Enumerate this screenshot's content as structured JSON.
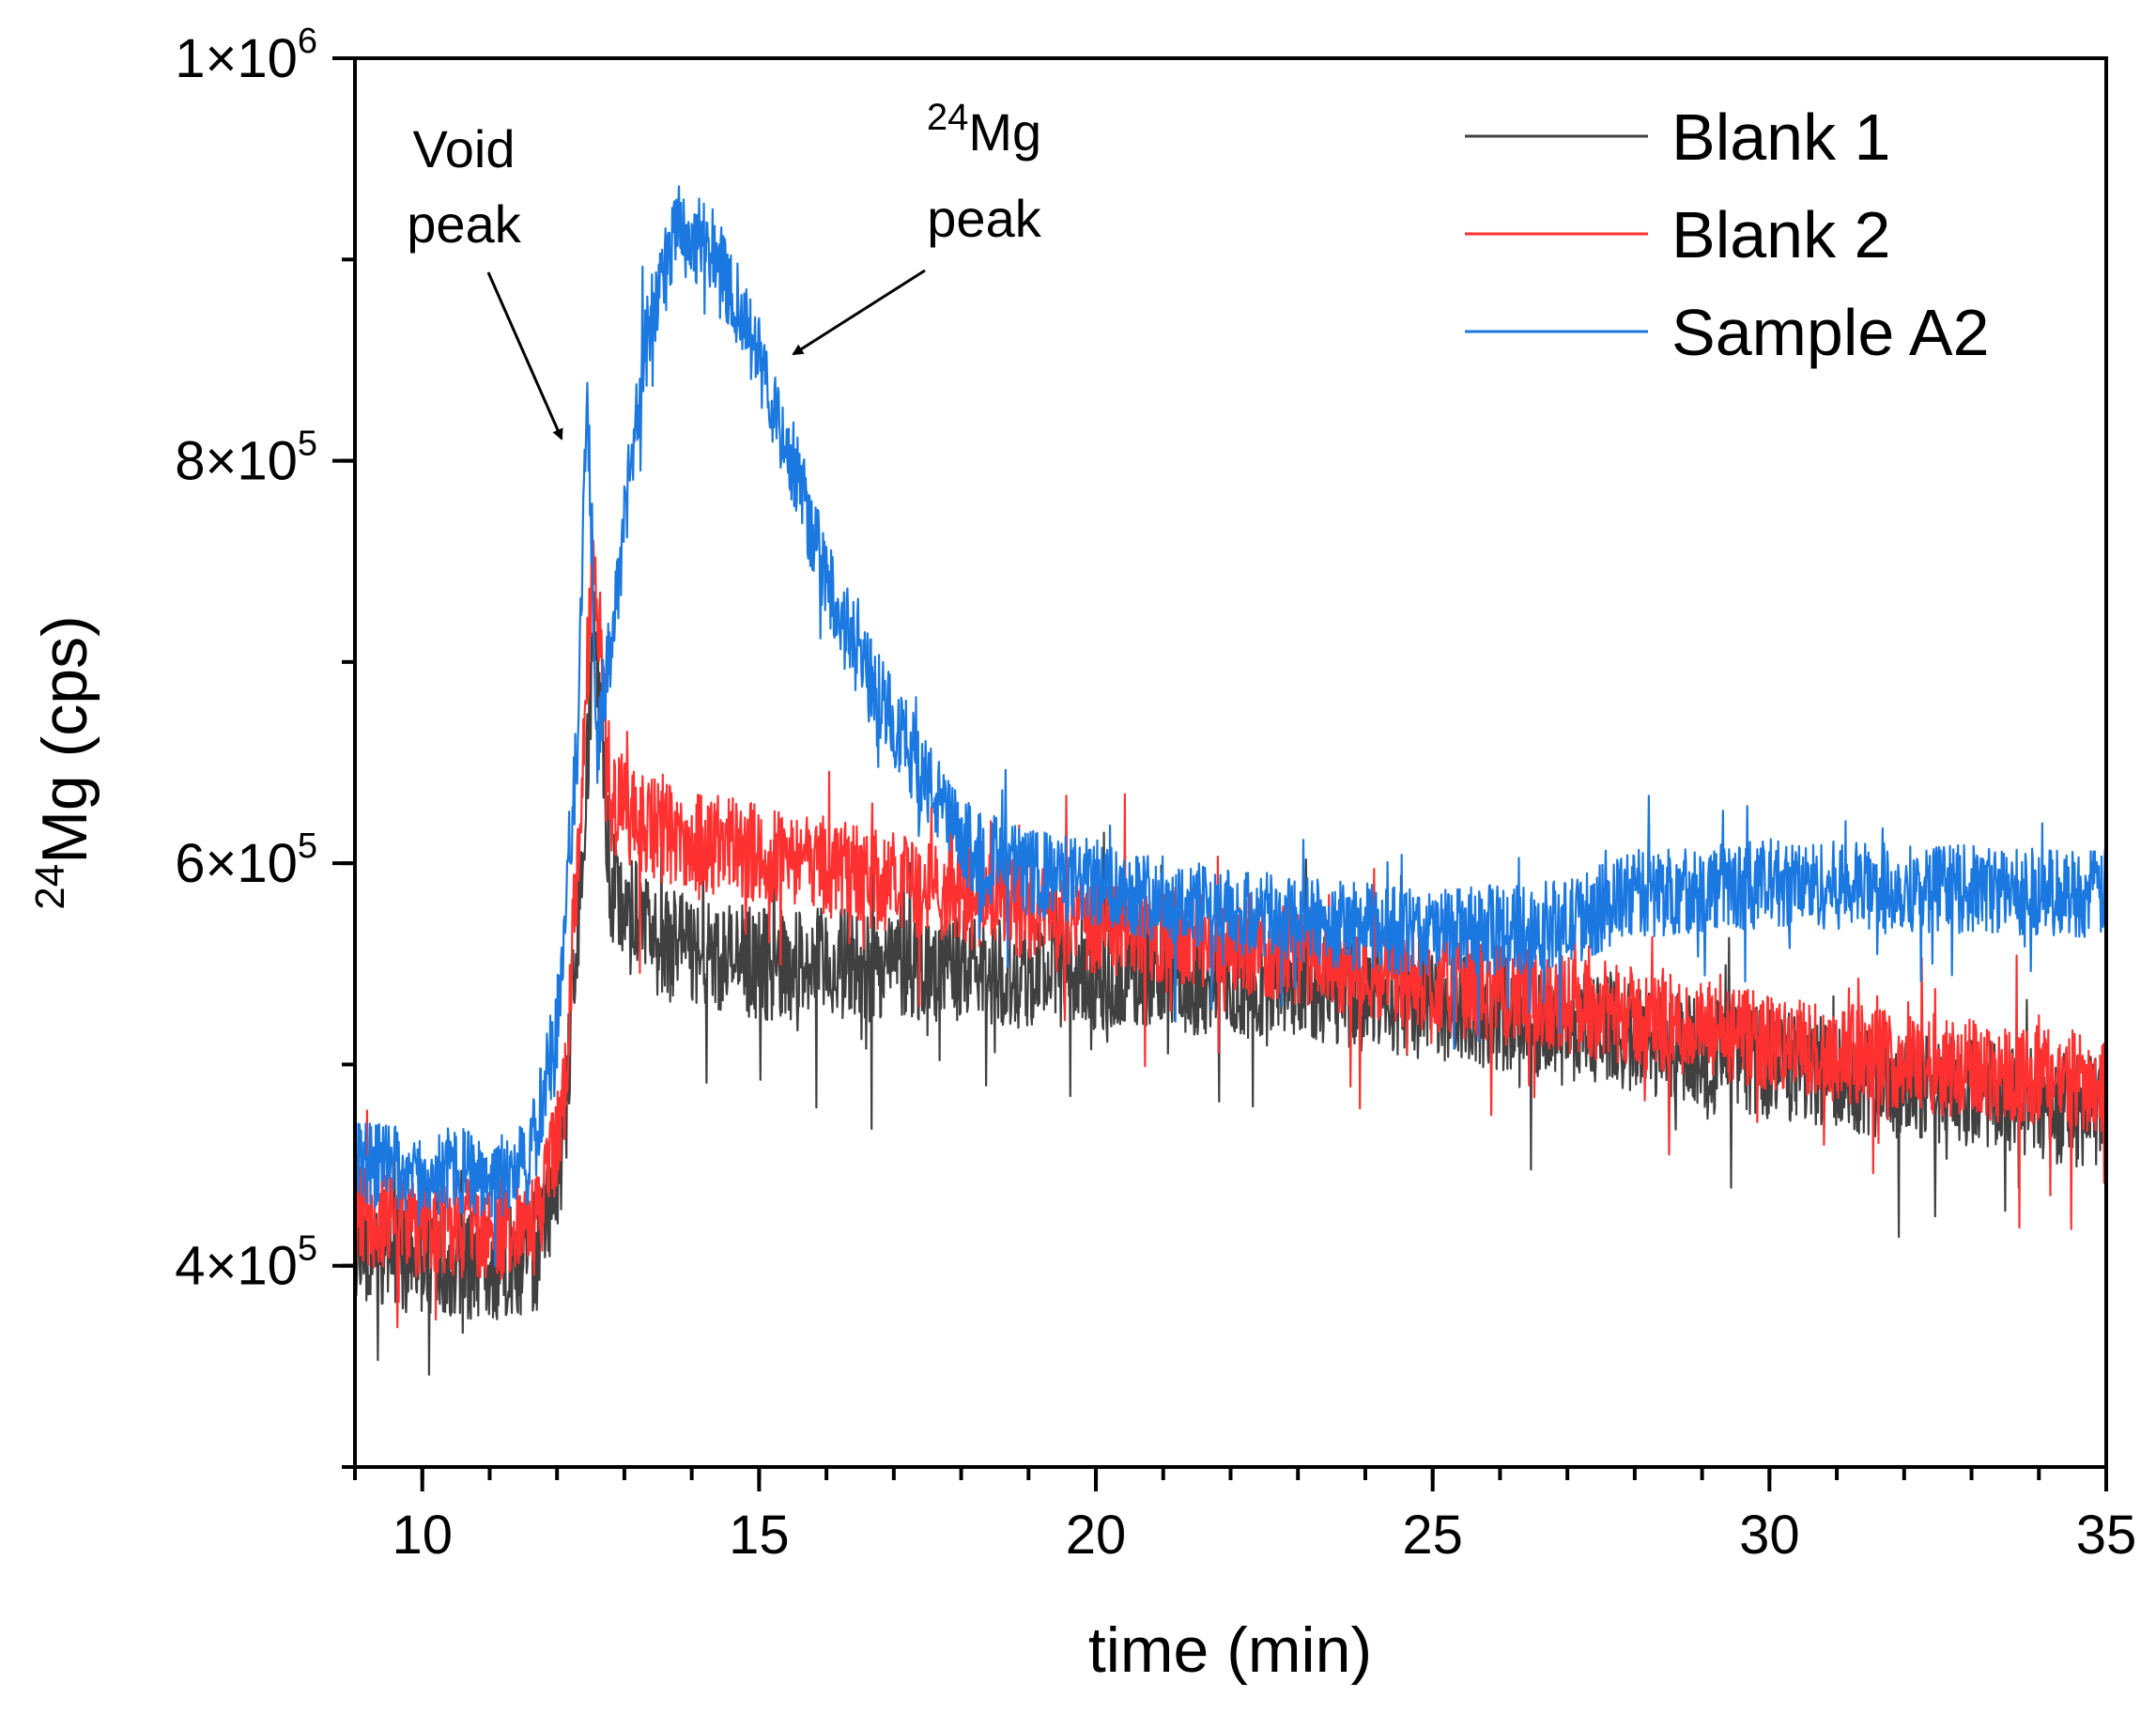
{
  "chart_data": {
    "type": "line",
    "xlabel": "time (min)",
    "ylabel_sup": "24",
    "ylabel_main": "Mg (cps)",
    "xlim": [
      9,
      35
    ],
    "ylim": [
      300000,
      1000000
    ],
    "x_ticks": [
      10,
      15,
      20,
      25,
      30,
      35
    ],
    "x_tick_labels": [
      "10",
      "15",
      "20",
      "25",
      "30",
      "35"
    ],
    "y_ticks": [
      {
        "value": 400000,
        "mant": "4×10",
        "exp": "5"
      },
      {
        "value": 600000,
        "mant": "6×10",
        "exp": "5"
      },
      {
        "value": 800000,
        "mant": "8×10",
        "exp": "5"
      },
      {
        "value": 1000000,
        "mant": "1×10",
        "exp": "6"
      }
    ],
    "legend_position": "top-right",
    "series": [
      {
        "name": "Blank 1",
        "color": "#404040",
        "noise": 28000,
        "points": [
          [
            9,
            410000
          ],
          [
            10,
            405000
          ],
          [
            11,
            400000
          ],
          [
            11.7,
            405000
          ],
          [
            12.1,
            460000
          ],
          [
            12.4,
            620000
          ],
          [
            12.55,
            720000
          ],
          [
            12.8,
            590000
          ],
          [
            13.5,
            560000
          ],
          [
            15,
            550000
          ],
          [
            17,
            550000
          ],
          [
            20,
            545000
          ],
          [
            23,
            540000
          ],
          [
            25,
            530000
          ],
          [
            27,
            520000
          ],
          [
            30,
            500000
          ],
          [
            35,
            475000
          ]
        ]
      },
      {
        "name": "Blank 2",
        "color": "#ff3030",
        "noise": 25000,
        "points": [
          [
            9,
            425000
          ],
          [
            10,
            420000
          ],
          [
            11,
            418000
          ],
          [
            11.7,
            420000
          ],
          [
            12.1,
            480000
          ],
          [
            12.4,
            660000
          ],
          [
            12.55,
            760000
          ],
          [
            12.8,
            630000
          ],
          [
            13.5,
            615000
          ],
          [
            15,
            605000
          ],
          [
            17,
            590000
          ],
          [
            18,
            585000
          ],
          [
            20,
            570000
          ],
          [
            23,
            555000
          ],
          [
            25,
            540000
          ],
          [
            27,
            530000
          ],
          [
            30,
            510000
          ],
          [
            35,
            490000
          ]
        ]
      },
      {
        "name": "Sample A2",
        "color": "#1a78e0",
        "noise": 22000,
        "points": [
          [
            9,
            450000
          ],
          [
            10,
            448000
          ],
          [
            11,
            445000
          ],
          [
            11.6,
            450000
          ],
          [
            12,
            520000
          ],
          [
            12.3,
            660000
          ],
          [
            12.45,
            830000
          ],
          [
            12.6,
            660000
          ],
          [
            12.9,
            740000
          ],
          [
            13.3,
            860000
          ],
          [
            13.8,
            915000
          ],
          [
            14.3,
            905000
          ],
          [
            14.8,
            870000
          ],
          [
            15.5,
            800000
          ],
          [
            16,
            740000
          ],
          [
            16.5,
            700000
          ],
          [
            17,
            670000
          ],
          [
            17.5,
            640000
          ],
          [
            18,
            610000
          ],
          [
            19,
            595000
          ],
          [
            20,
            590000
          ],
          [
            22,
            575000
          ],
          [
            25,
            565000
          ],
          [
            27,
            570000
          ],
          [
            28,
            585000
          ],
          [
            30,
            590000
          ],
          [
            35,
            585000
          ]
        ]
      }
    ],
    "annotations": {
      "void_line1": "Void",
      "void_line2": "peak",
      "mg_sup": "24",
      "mg_main": "Mg",
      "mg_line2": "peak"
    }
  }
}
